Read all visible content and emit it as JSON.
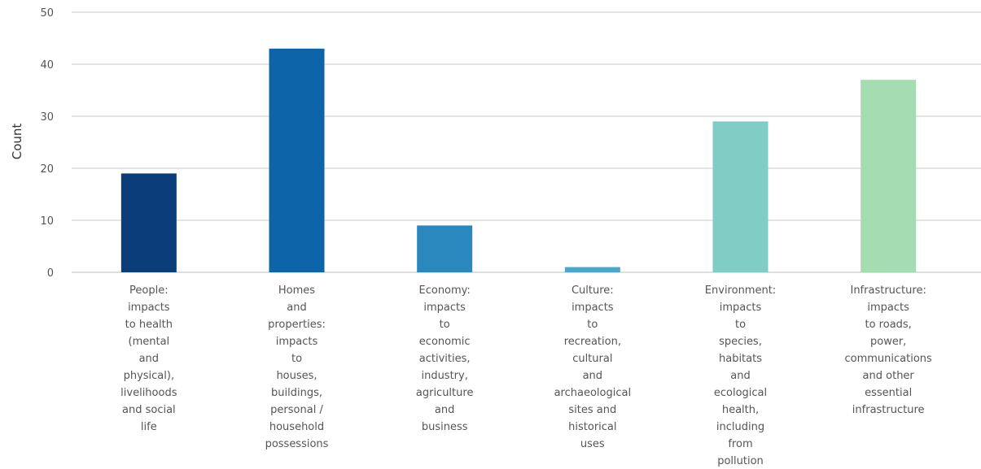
{
  "chart_data": {
    "type": "bar",
    "title": "",
    "xlabel": "",
    "ylabel": "Count",
    "ylim": [
      0,
      50
    ],
    "yticks": [
      "0",
      "10",
      "20",
      "30",
      "40",
      "50"
    ],
    "grid": true,
    "categories": [
      [
        "People:",
        "impacts",
        "to health",
        "(mental",
        "and",
        "physical),",
        "livelihoods",
        "and social",
        "life"
      ],
      [
        "Homes",
        "and",
        "properties:",
        "impacts",
        "to",
        "houses,",
        "buildings,",
        "personal /",
        "household",
        "possessions"
      ],
      [
        "Economy:",
        "impacts",
        "to",
        "economic",
        "activities,",
        "industry,",
        "agriculture",
        "and",
        "business"
      ],
      [
        "Culture:",
        "impacts",
        "to",
        "recreation,",
        "cultural",
        "and",
        "archaeological",
        "sites and",
        "historical",
        "uses"
      ],
      [
        "Environment:",
        "impacts",
        "to",
        "species,",
        "habitats",
        "and",
        "ecological",
        "health,",
        "including",
        "from",
        "pollution"
      ],
      [
        "Infrastructure:",
        "impacts",
        "to roads,",
        "power,",
        "communications",
        "and other",
        "essential",
        "infrastructure"
      ]
    ],
    "values": [
      19,
      43,
      9,
      1,
      29,
      37
    ],
    "colors": [
      "#0b3d7a",
      "#0e64a8",
      "#2b88bf",
      "#4aa6cc",
      "#7fcdc4",
      "#a6dcb1"
    ]
  }
}
